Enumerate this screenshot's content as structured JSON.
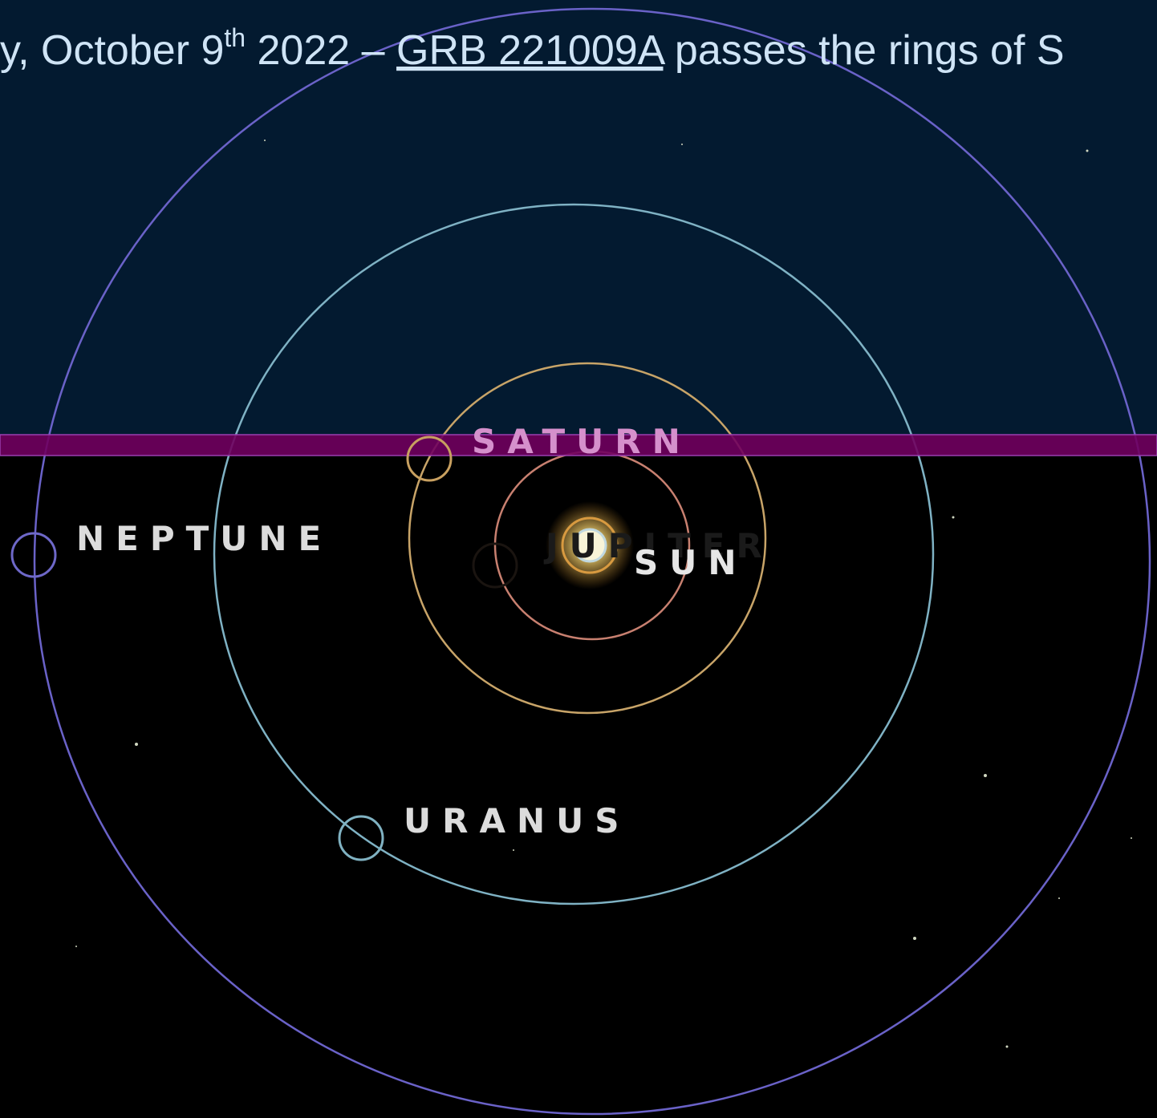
{
  "title": {
    "lead": "y, October 9",
    "sup": "th",
    "mid": " 2022 – ",
    "link": "GRB 221009A",
    "tail": " passes the rings of S"
  },
  "labels": {
    "saturn": "SATURN",
    "jupiter": "JUPITER",
    "sun": "SUN",
    "neptune": "NEPTUNE",
    "uranus": "URANUS"
  }
}
